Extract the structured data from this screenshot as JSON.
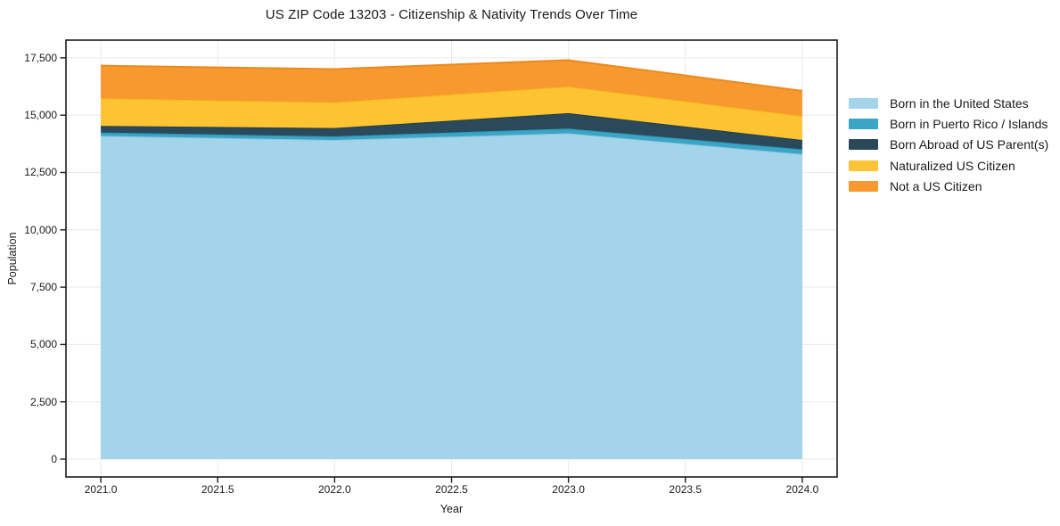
{
  "title": "US ZIP Code 13203 - Citizenship & Nativity Trends Over Time",
  "colors": {
    "background": "#FFFFFF",
    "grid": "#EAEAEA",
    "frame": "#1C1C1C",
    "text": "#1A1A1A"
  },
  "chart_data": {
    "type": "area",
    "stacked": true,
    "title": "US ZIP Code 13203 - Citizenship & Nativity Trends Over Time",
    "xlabel": "Year",
    "ylabel": "Population",
    "grid": true,
    "legend_position": "right",
    "x": [
      2021,
      2022,
      2023,
      2024
    ],
    "series": [
      {
        "name": "Born in the United States",
        "color": "#A4D4E9",
        "edge_color": "#8CC4E0",
        "values": [
          14100,
          13920,
          14210,
          13300
        ]
      },
      {
        "name": "Born in Puerto Rico / Islands",
        "color": "#3AA5C5",
        "edge_color": "#2D96B6",
        "values": [
          145,
          155,
          205,
          210
        ]
      },
      {
        "name": "Born Abroad of US Parent(s)",
        "color": "#2A4A5C",
        "edge_color": "#203D4D",
        "values": [
          285,
          365,
          675,
          410
        ]
      },
      {
        "name": "Naturalized US Citizen",
        "color": "#FCC433",
        "edge_color": "#F5B71B",
        "values": [
          1205,
          1120,
          1160,
          1040
        ]
      },
      {
        "name": "Not a US Citizen",
        "color": "#F7992E",
        "edge_color": "#ED891C",
        "values": [
          1425,
          1450,
          1150,
          1100
        ]
      }
    ],
    "totals": [
      17160,
      17010,
      17400,
      16060
    ],
    "xlim": [
      2020.851,
      2024.149
    ],
    "ylim": [
      -778,
      18273
    ],
    "xticks": {
      "values": [
        2021.0,
        2021.5,
        2022.0,
        2022.5,
        2023.0,
        2023.5,
        2024.0
      ],
      "labels": [
        "2021.0",
        "2021.5",
        "2022.0",
        "2022.5",
        "2023.0",
        "2023.5",
        "2024.0"
      ]
    },
    "yticks": {
      "values": [
        0,
        2500,
        5000,
        7500,
        10000,
        12500,
        15000,
        17500
      ],
      "labels": [
        "0",
        "2,500",
        "5,000",
        "7,500",
        "10,000",
        "12,500",
        "15,000",
        "17,500"
      ]
    }
  }
}
